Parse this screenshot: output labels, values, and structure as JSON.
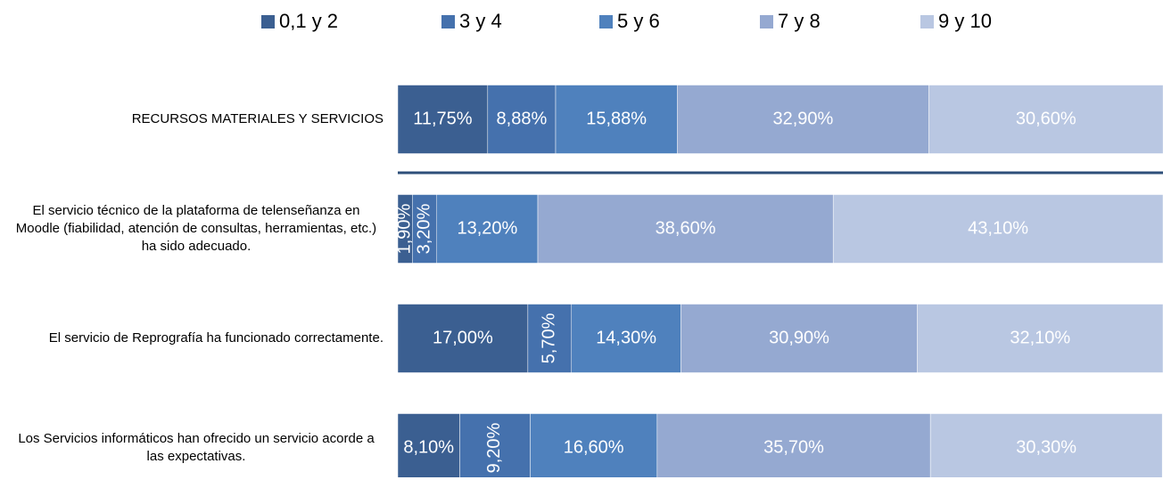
{
  "chart_data": {
    "type": "stacked_bar_horizontal",
    "categories": [
      "RECURSOS MATERIALES Y SERVICIOS",
      "El servicio técnico de la plataforma de telenseñanza en Moodle (fiabilidad, atención de consultas, herramientas, etc.) ha sido adecuado.",
      "El servicio de Reprografía ha funcionado correctamente.",
      "Los Servicios informáticos han ofrecido un servicio acorde a las expectativas."
    ],
    "xlim": [
      0,
      100
    ],
    "legend": "top",
    "series": [
      {
        "name": "0,1 y 2",
        "color": "#3b5f91",
        "values": [
          11.75,
          1.9,
          17.0,
          8.1
        ],
        "value_labels": [
          "11,75%",
          "1,90%",
          "17,00%",
          "8,10%"
        ]
      },
      {
        "name": "3 y 4",
        "color": "#4571ad",
        "values": [
          8.88,
          3.2,
          5.7,
          9.2
        ],
        "value_labels": [
          "8,88%",
          "3,20%",
          "5,70%",
          "9,20%"
        ]
      },
      {
        "name": "5 y 6",
        "color": "#4f81bd",
        "values": [
          15.88,
          13.2,
          14.3,
          16.6
        ],
        "value_labels": [
          "15,88%",
          "13,20%",
          "14,30%",
          "16,60%"
        ]
      },
      {
        "name": "7 y 8",
        "color": "#95a9d1",
        "values": [
          32.9,
          38.6,
          30.9,
          35.7
        ],
        "value_labels": [
          "32,90%",
          "38,60%",
          "30,90%",
          "35,70%"
        ]
      },
      {
        "name": "9 y 10",
        "color": "#b9c7e2",
        "values": [
          30.6,
          43.1,
          32.1,
          30.3
        ],
        "value_labels": [
          "30,60%",
          "43,10%",
          "32,10%",
          "30,30%"
        ]
      }
    ]
  }
}
